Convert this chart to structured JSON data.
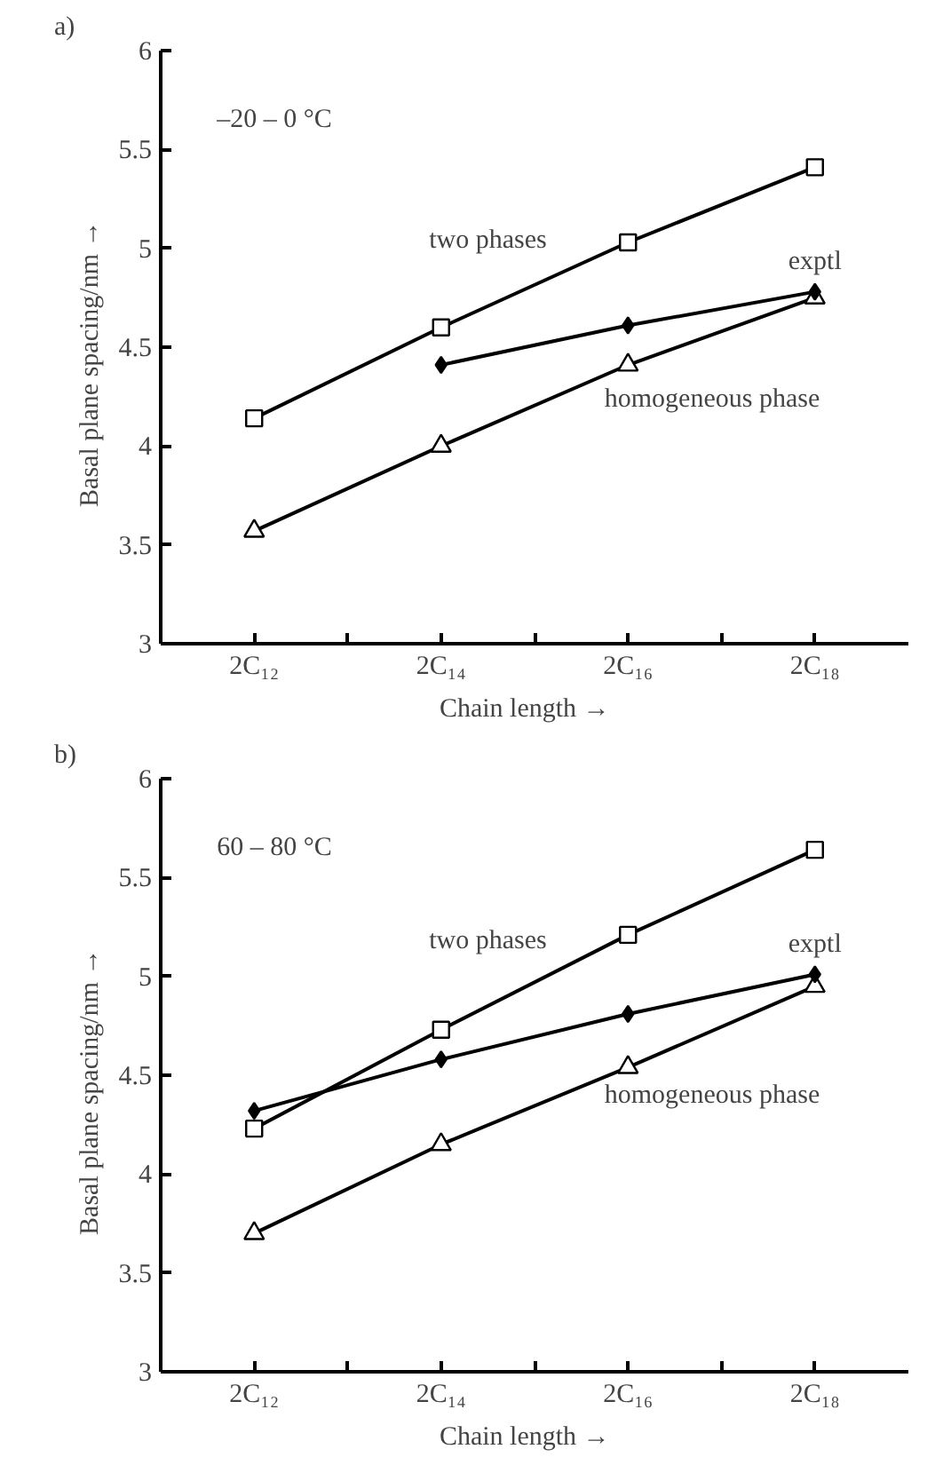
{
  "chart_data": [
    {
      "type": "line",
      "title": "a)",
      "xlabel": "Chain length    →",
      "ylabel": "Basal plane spacing/nm      →",
      "categories": [
        "2C₁₂",
        "2C₁₄",
        "2C₁₆",
        "2C₁₈"
      ],
      "ylim": [
        3,
        6
      ],
      "yticks": [
        3,
        3.5,
        4,
        4.5,
        5,
        5.5,
        6
      ],
      "grid": false,
      "annotations": [
        "–20 – 0 °C"
      ],
      "series": [
        {
          "name": "two phases",
          "color": "#000000",
          "marker": "square",
          "values": [
            4.14,
            4.6,
            5.03,
            5.41
          ]
        },
        {
          "name": "exptl",
          "color": "#000000",
          "marker": "diamond",
          "values": [
            null,
            4.41,
            4.61,
            4.78
          ]
        },
        {
          "name": "homogeneous phase",
          "color": "#000000",
          "marker": "triangle",
          "values": [
            3.57,
            4.0,
            4.41,
            4.75
          ]
        }
      ]
    },
    {
      "type": "line",
      "title": "b)",
      "xlabel": "Chain length    →",
      "ylabel": "Basal plane spacing/nm      →",
      "categories": [
        "2C₁₂",
        "2C₁₄",
        "2C₁₆",
        "2C₁₈"
      ],
      "ylim": [
        3,
        6
      ],
      "yticks": [
        3,
        3.5,
        4,
        4.5,
        5,
        5.5,
        6
      ],
      "grid": false,
      "annotations": [
        "60 – 80 °C"
      ],
      "series": [
        {
          "name": "two phases",
          "color": "#000000",
          "marker": "square",
          "values": [
            4.23,
            4.73,
            5.21,
            5.64
          ]
        },
        {
          "name": "exptl",
          "color": "#000000",
          "marker": "diamond",
          "values": [
            4.32,
            4.58,
            4.81,
            5.01
          ]
        },
        {
          "name": "homogeneous phase",
          "color": "#000000",
          "marker": "triangle",
          "values": [
            3.7,
            4.15,
            4.54,
            4.95
          ]
        }
      ]
    }
  ]
}
